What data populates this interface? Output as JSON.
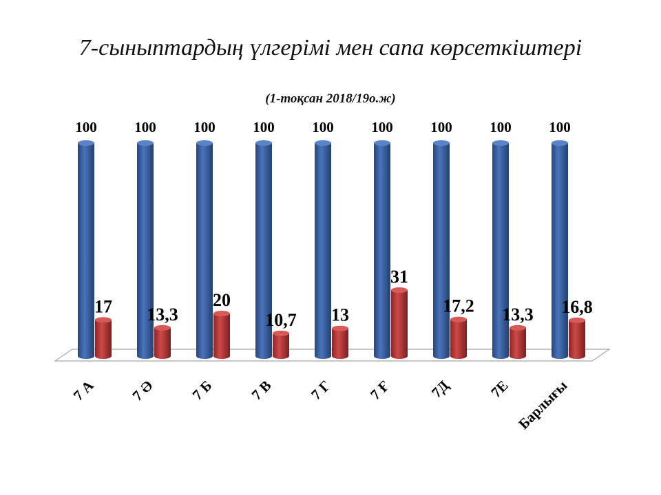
{
  "chart_data": {
    "type": "bar",
    "title": "7-сыныптардың үлгерімі мен сапа көрсеткіштері",
    "subtitle": "(1-тоқсан 2018/19о.ж)",
    "categories": [
      "7 А",
      "7 Ә",
      "7 Б",
      "7 В",
      "7 Г",
      "7 Ғ",
      "7Д",
      "7Е",
      "Барлығы"
    ],
    "series": [
      {
        "values": [
          100,
          100,
          100,
          100,
          100,
          100,
          100,
          100,
          100
        ],
        "color": "#3f66a8"
      },
      {
        "values": [
          17,
          13.3,
          20,
          10.7,
          13,
          31,
          17.2,
          13.3,
          16.8
        ],
        "color": "#b8383a"
      }
    ],
    "value_labels": [
      [
        "100",
        "100",
        "100",
        "100",
        "100",
        "100",
        "100",
        "100",
        "100"
      ],
      [
        "17",
        "13,3",
        "20",
        "10,7",
        "13",
        "31",
        "17,2",
        "13,3",
        "16,8"
      ]
    ],
    "ylim": [
      0,
      100
    ],
    "grid": false,
    "legend": "none"
  }
}
